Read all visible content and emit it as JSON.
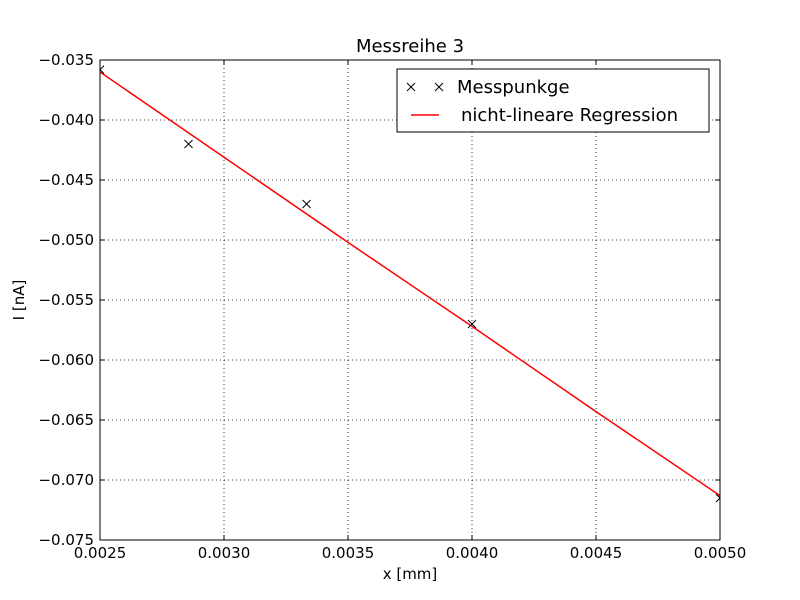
{
  "chart_data": {
    "type": "scatter",
    "title": "Messreihe 3",
    "xlabel": "x [mm]",
    "ylabel": "I [nA]",
    "xlim": [
      0.0025,
      0.005
    ],
    "ylim": [
      -0.075,
      -0.035
    ],
    "x_ticks": [
      {
        "value": 0.0025,
        "label": "0.0025"
      },
      {
        "value": 0.003,
        "label": "0.0030"
      },
      {
        "value": 0.0035,
        "label": "0.0035"
      },
      {
        "value": 0.004,
        "label": "0.0040"
      },
      {
        "value": 0.0045,
        "label": "0.0045"
      },
      {
        "value": 0.005,
        "label": "0.0050"
      }
    ],
    "y_ticks": [
      {
        "value": -0.035,
        "label": "−0.035"
      },
      {
        "value": -0.04,
        "label": "−0.040"
      },
      {
        "value": -0.045,
        "label": "−0.045"
      },
      {
        "value": -0.05,
        "label": "−0.050"
      },
      {
        "value": -0.055,
        "label": "−0.055"
      },
      {
        "value": -0.06,
        "label": "−0.060"
      },
      {
        "value": -0.065,
        "label": "−0.065"
      },
      {
        "value": -0.07,
        "label": "−0.070"
      },
      {
        "value": -0.075,
        "label": "−0.075"
      }
    ],
    "grid": true,
    "legend_position": "top-right",
    "series": [
      {
        "name": "Messpunkge",
        "kind": "marker",
        "marker": "x",
        "color": "#000000",
        "points": [
          {
            "x": 0.0025,
            "y": -0.0358
          },
          {
            "x": 0.002857,
            "y": -0.042
          },
          {
            "x": 0.003333,
            "y": -0.047
          },
          {
            "x": 0.004,
            "y": -0.057
          },
          {
            "x": 0.005,
            "y": -0.0715
          }
        ]
      },
      {
        "name": "nicht-lineare Regression",
        "kind": "line",
        "color": "#ff0000",
        "points": [
          {
            "x": 0.0025,
            "y": -0.036
          },
          {
            "x": 0.003,
            "y": -0.0431
          },
          {
            "x": 0.0035,
            "y": -0.0502
          },
          {
            "x": 0.004,
            "y": -0.0572
          },
          {
            "x": 0.0045,
            "y": -0.0643
          },
          {
            "x": 0.005,
            "y": -0.0713
          }
        ]
      }
    ]
  }
}
